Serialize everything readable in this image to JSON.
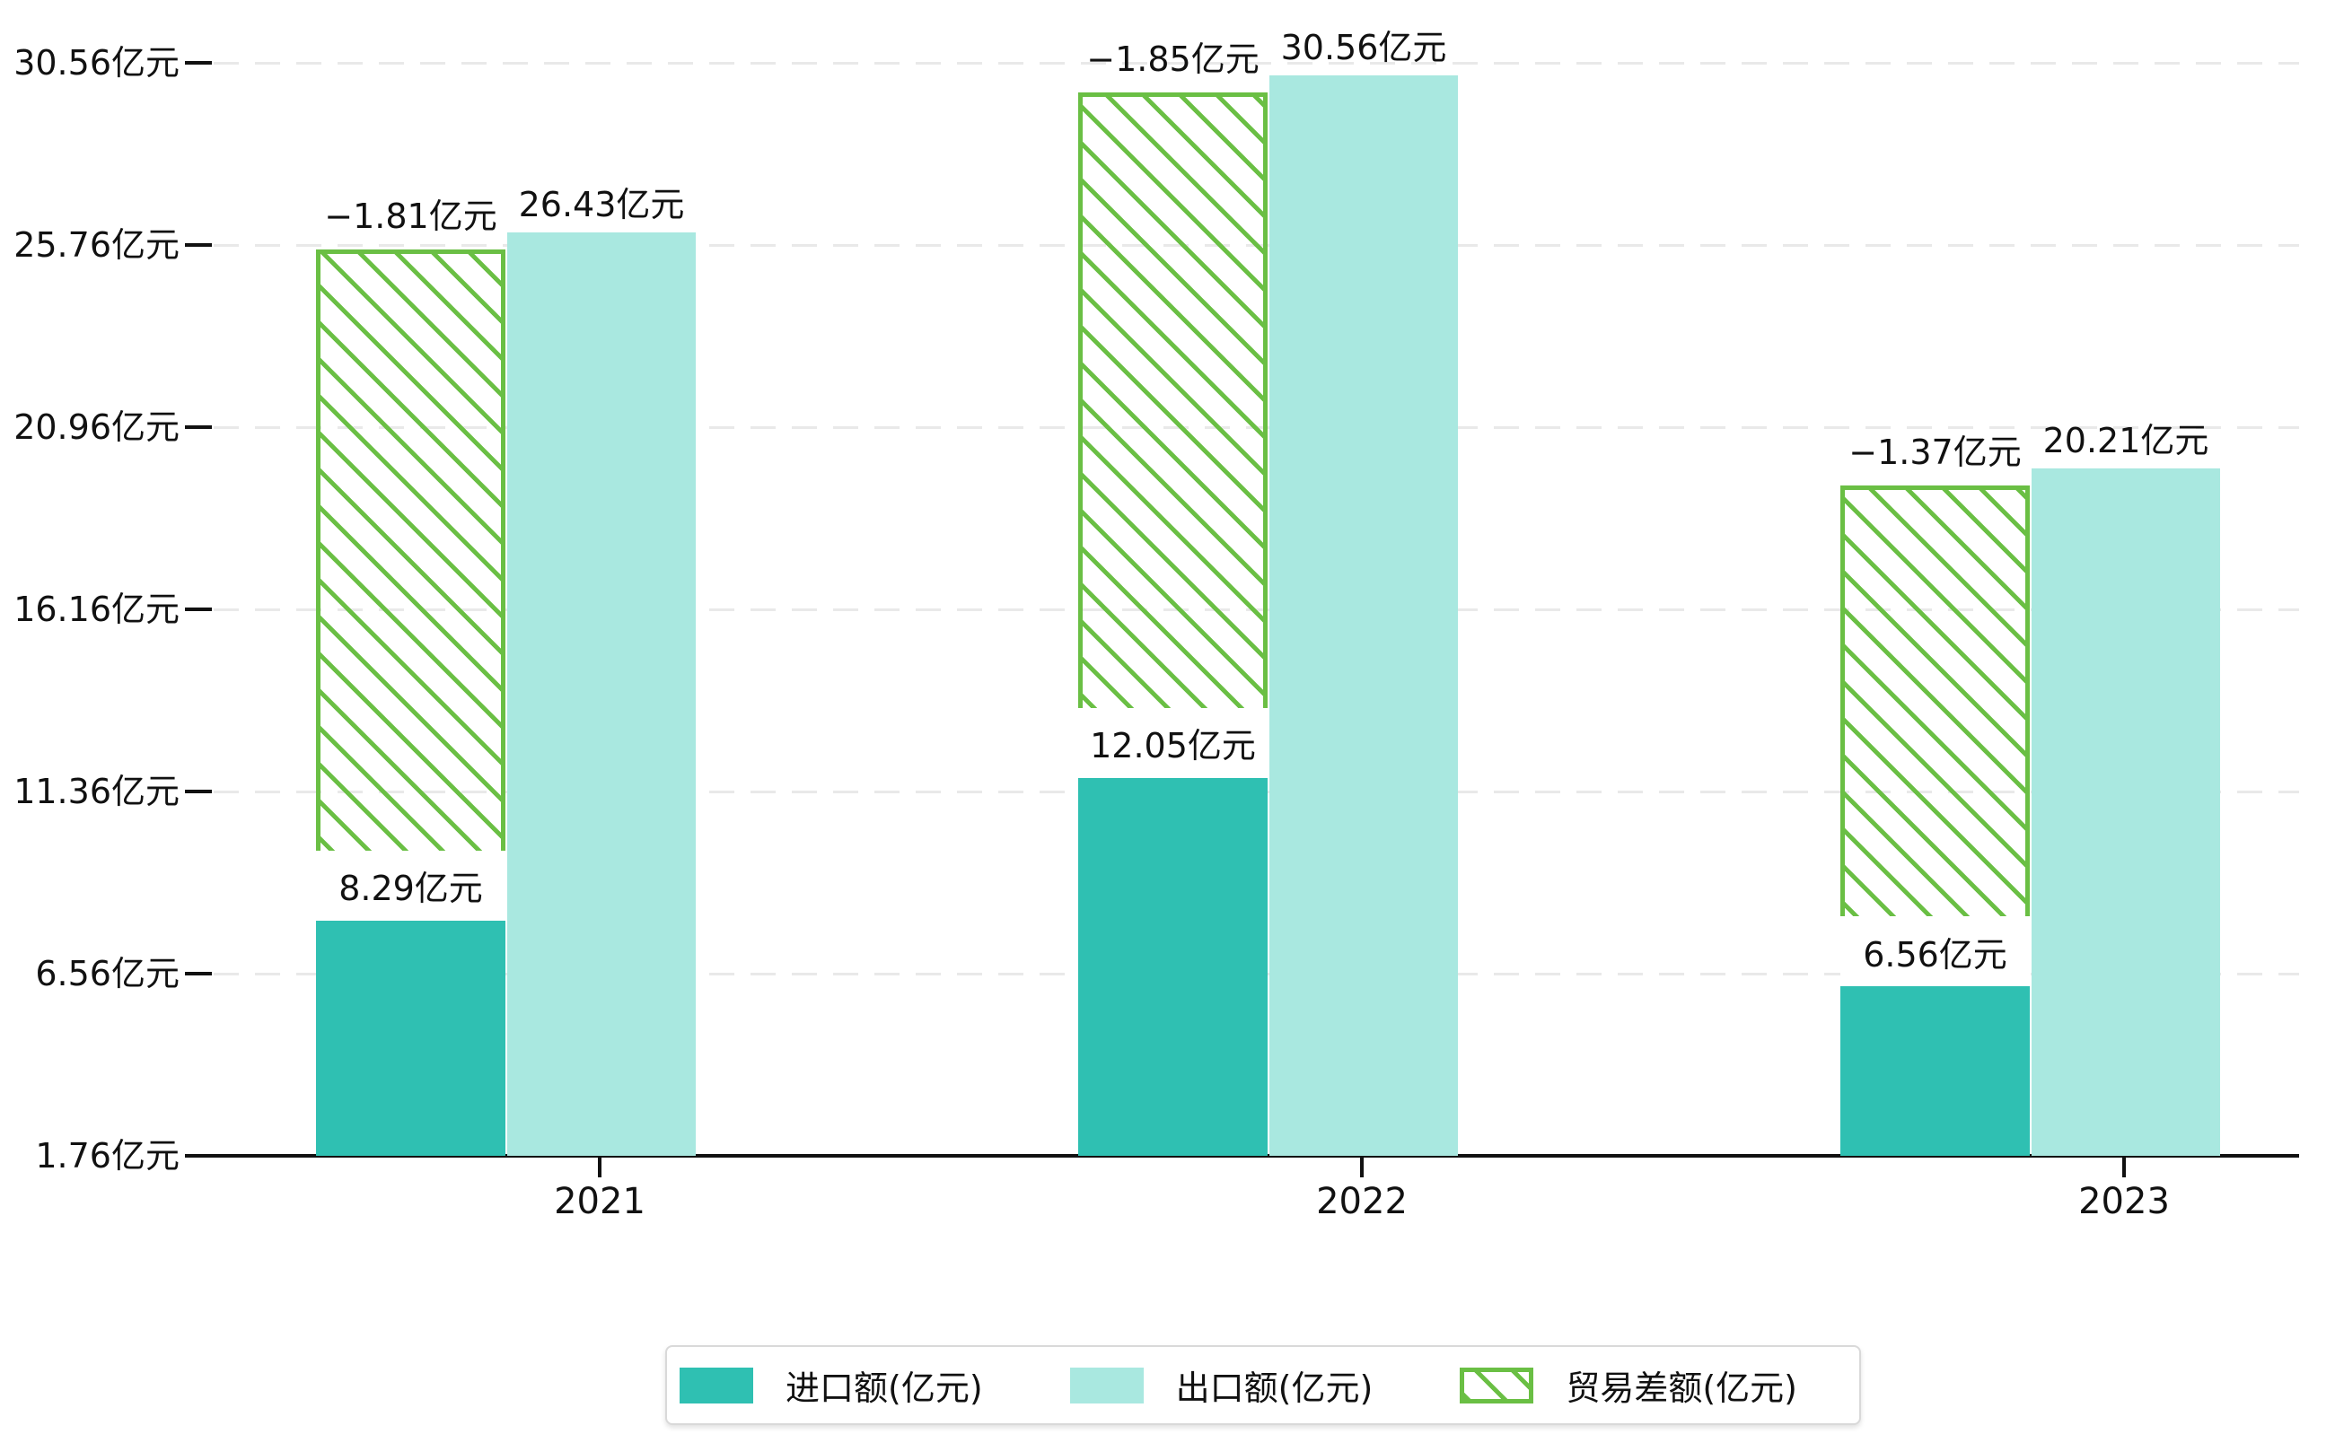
{
  "chart_data": {
    "type": "bar",
    "title": "",
    "categories": [
      "2021",
      "2022",
      "2023"
    ],
    "unit": "亿元",
    "series": [
      {
        "name": "进口额(亿元)",
        "style": "solid",
        "role": "import",
        "values": [
          8.29,
          12.05,
          6.56
        ],
        "data_labels": [
          "8.29亿元",
          "12.05亿元",
          "6.56亿元"
        ]
      },
      {
        "name": "出口额(亿元)",
        "style": "solid",
        "role": "export",
        "values": [
          26.43,
          30.56,
          20.21
        ],
        "data_labels": [
          "26.43亿元",
          "30.56亿元",
          "20.21亿元"
        ]
      },
      {
        "name": "贸易差额(亿元)",
        "style": "hatched",
        "role": "trade-balance",
        "values": [
          -1.81,
          -1.85,
          -1.37
        ],
        "data_labels": [
          "−1.81亿元",
          "−1.85亿元",
          "−1.37亿元"
        ]
      }
    ],
    "y_axis": {
      "tick_values": [
        1.76,
        6.56,
        11.36,
        16.16,
        20.96,
        25.76,
        30.56
      ],
      "tick_labels": [
        "1.76亿元",
        "6.56亿元",
        "11.36亿元",
        "16.16亿元",
        "20.96亿元",
        "25.76亿元",
        "30.56亿元"
      ],
      "min": 1.76,
      "max": 30.56,
      "grid": "dashed"
    },
    "legend": {
      "position": "bottom",
      "items": [
        "进口额(亿元)",
        "出口额(亿元)",
        "贸易差额(亿元)"
      ]
    },
    "colors": {
      "import": "#2fc0b2",
      "export": "#a9e8e0",
      "balance": "#6abf44",
      "grid": "#e9e9e9",
      "axis": "#111111",
      "text": "#111111",
      "label_bg": "#ffffff",
      "legend_border": "#d9d9d9"
    }
  }
}
